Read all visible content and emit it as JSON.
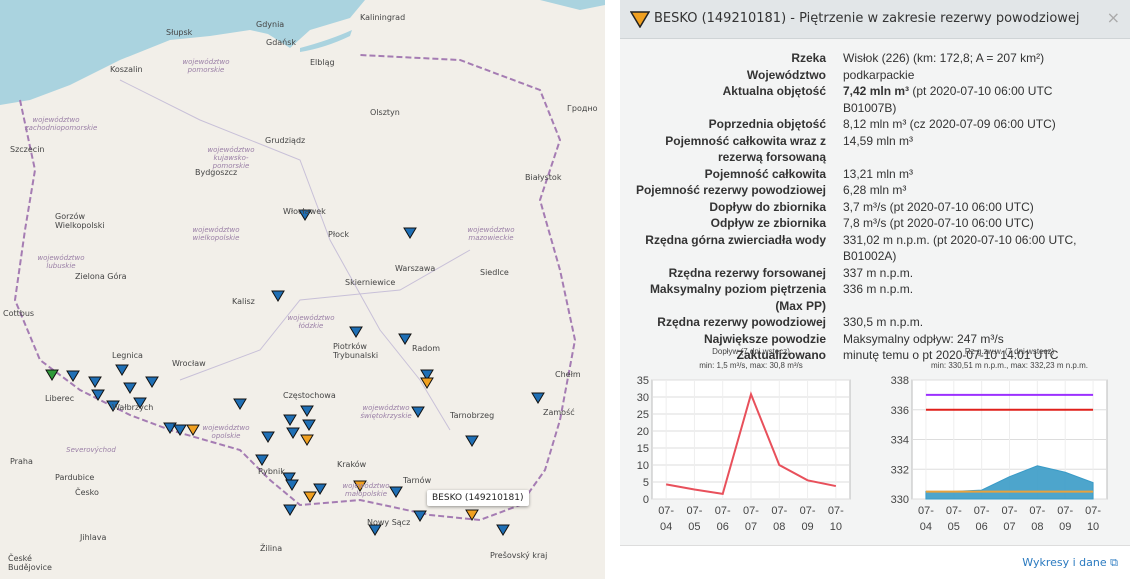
{
  "map": {
    "cities": [
      "Gdynia",
      "Gdańsk",
      "Kaliningrad",
      "Słupsk",
      "Koszalin",
      "Elbląg",
      "Olsztyn",
      "Szczecin",
      "Bydgoszcz",
      "Grudziądz",
      "Gorzów Wielkopolski",
      "Włocławek",
      "Płock",
      "Białystok",
      "Warszawa",
      "Siedlce",
      "Zielona Góra",
      "Kalisz",
      "Skierniewice",
      "Piotrków Trybunalski",
      "Radom",
      "Legnica",
      "Wrocław",
      "Liberec",
      "Wałbrzych",
      "Częstochowa",
      "Chełm",
      "Zamość",
      "Tarnobrzeg",
      "Praha",
      "Rybnik",
      "Kraków",
      "Tarnów",
      "Nowy Sącz",
      "Pardubice",
      "Česko",
      "Jihlava",
      "Žilina",
      "Prešovský kraj",
      "Cottbus",
      "Гродно",
      "České Budějovice"
    ],
    "regions": [
      "województwo pomorskie",
      "województwo zachodniopomorskie",
      "województwo kujawsko-pomorskie",
      "województwo wielkopolskie",
      "województwo lubuskie",
      "województwo łódzkie",
      "województwo mazowieckie",
      "województwo opolskie",
      "województwo świętokrzyskie",
      "województwo małopolskie",
      "Severovýchod"
    ],
    "tooltip": "BESKO (149210181)"
  },
  "popup": {
    "title": "BESKO (149210181) - Piętrzenie w zakresie rezerwy powodziowej",
    "close": "×",
    "rows": [
      {
        "label": "Rzeka",
        "value": "Wisłok (226) (km: 172,8; A = 207 km²)"
      },
      {
        "label": "Województwo",
        "value": "podkarpackie"
      },
      {
        "label": "Aktualna objętość",
        "value_strong": "7,42 mln m³",
        "value": " (pt 2020-07-10 06:00 UTC B01007B)"
      },
      {
        "label": "Poprzednia objętość",
        "value": "8,12 mln m³ (cz 2020-07-09 06:00 UTC)"
      },
      {
        "label": "Pojemność całkowita wraz z rezerwą forsowaną",
        "value": "14,59 mln m³"
      },
      {
        "label": "Pojemność całkowita",
        "value": "13,21 mln m³"
      },
      {
        "label": "Pojemność rezerwy powodziowej",
        "value": "6,28 mln m³"
      },
      {
        "label": "Dopływ do zbiornika",
        "value": "3,7 m³/s (pt 2020-07-10 06:00 UTC)"
      },
      {
        "label": "Odpływ ze zbiornika",
        "value": "7,8 m³/s (pt 2020-07-10 06:00 UTC)"
      },
      {
        "label": "Rzędna górna zwierciadła wody",
        "value": "331,02 m n.p.m. (pt 2020-07-10 06:00 UTC, B01002A)"
      },
      {
        "label": "Rzędna rezerwy forsowanej",
        "value": "337 m n.p.m."
      },
      {
        "label": "Maksymalny poziom piętrzenia (Max PP)",
        "value": "336 m n.p.m."
      },
      {
        "label": "Rzędna rezerwy powodziowej",
        "value": "330,5 m n.p.m."
      },
      {
        "label": "Największe powodzie",
        "value": "Maksymalny odpływ: 247 m³/s"
      },
      {
        "label": "Zaktualizowano",
        "value": "minutę temu o pt 2020-07-10 14:01 UTC"
      }
    ],
    "footer_link": "Wykresy i dane"
  },
  "chart_data": [
    {
      "type": "line",
      "title": "Dopływ (7 dni wstecz)",
      "subtitle": "min: 1,5 m³/s, max: 30,8 m³/s",
      "categories": [
        "07-04",
        "07-05",
        "07-06",
        "07-07",
        "07-08",
        "07-09",
        "07-10"
      ],
      "series": [
        {
          "color": "#e8505b",
          "values": [
            4.3,
            2.8,
            1.5,
            30.8,
            10,
            5.5,
            3.8
          ]
        }
      ],
      "ylim": [
        0,
        35
      ],
      "yticks": [
        0,
        5,
        10,
        15,
        20,
        25,
        30,
        35
      ],
      "grid": true
    },
    {
      "type": "line",
      "title": "Rz g.zw.w. (7 dni wstecz)",
      "subtitle": "min: 330,51 m n.p.m., max: 332,23 m n.p.m.",
      "categories": [
        "07-04",
        "07-05",
        "07-06",
        "07-07",
        "07-08",
        "07-09",
        "07-10"
      ],
      "series": [
        {
          "type": "area",
          "color": "#3a9bc7",
          "values": [
            330.51,
            330.51,
            330.6,
            331.5,
            332.23,
            331.8,
            331.1
          ]
        },
        {
          "color": "#9b30ff",
          "values": [
            337,
            337,
            337,
            337,
            337,
            337,
            337
          ]
        },
        {
          "color": "#e0201b",
          "values": [
            336,
            336,
            336,
            336,
            336,
            336,
            336
          ]
        },
        {
          "color": "#e8a23c",
          "values": [
            330.5,
            330.5,
            330.5,
            330.5,
            330.5,
            330.5,
            330.5
          ]
        }
      ],
      "ylim": [
        330,
        338
      ],
      "yticks": [
        330,
        332,
        334,
        336,
        338
      ],
      "grid": true
    }
  ]
}
